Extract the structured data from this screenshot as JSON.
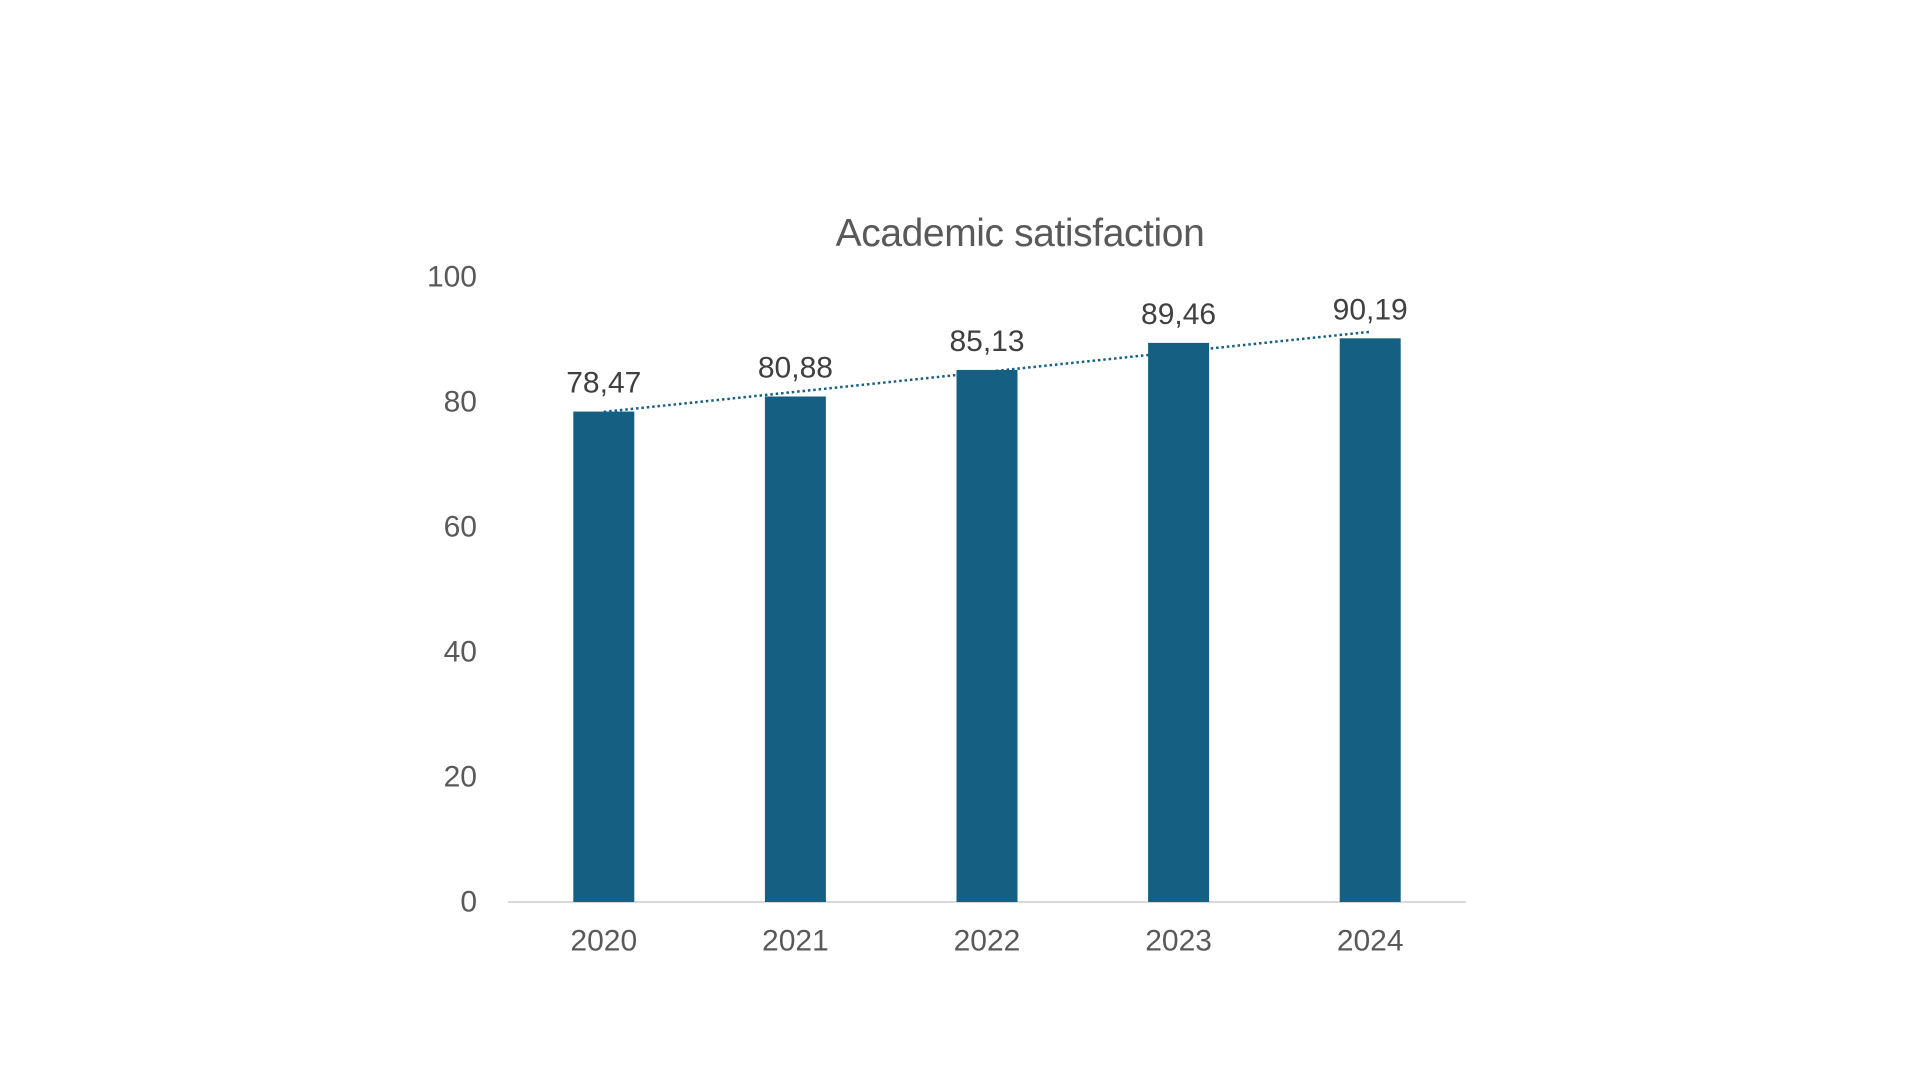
{
  "chart_data": {
    "type": "bar",
    "title": "Academic satisfaction",
    "categories": [
      "2020",
      "2021",
      "2022",
      "2023",
      "2024"
    ],
    "values": [
      78.47,
      80.88,
      85.13,
      89.46,
      90.19
    ],
    "data_labels": [
      "78,47",
      "80,88",
      "85,13",
      "89,46",
      "90,19"
    ],
    "xlabel": "",
    "ylabel": "",
    "ylim": [
      0,
      100
    ],
    "y_ticks": [
      0,
      20,
      40,
      60,
      80,
      100
    ],
    "y_tick_labels": [
      "0",
      "20",
      "40",
      "60",
      "80",
      "100"
    ],
    "grid": false,
    "legend_position": "none",
    "data_label_position": "outside-end",
    "trendline": {
      "type": "linear",
      "line_style": "dotted",
      "color": "#156082",
      "spans": "first-category-center-to-last-category-center"
    },
    "colors": {
      "bar": "#156082",
      "trendline": "#156082",
      "axis_line": "#d9d9d9",
      "title_text": "#595959",
      "tick_text": "#595959",
      "data_label_text": "#404040",
      "background": "#ffffff"
    }
  }
}
